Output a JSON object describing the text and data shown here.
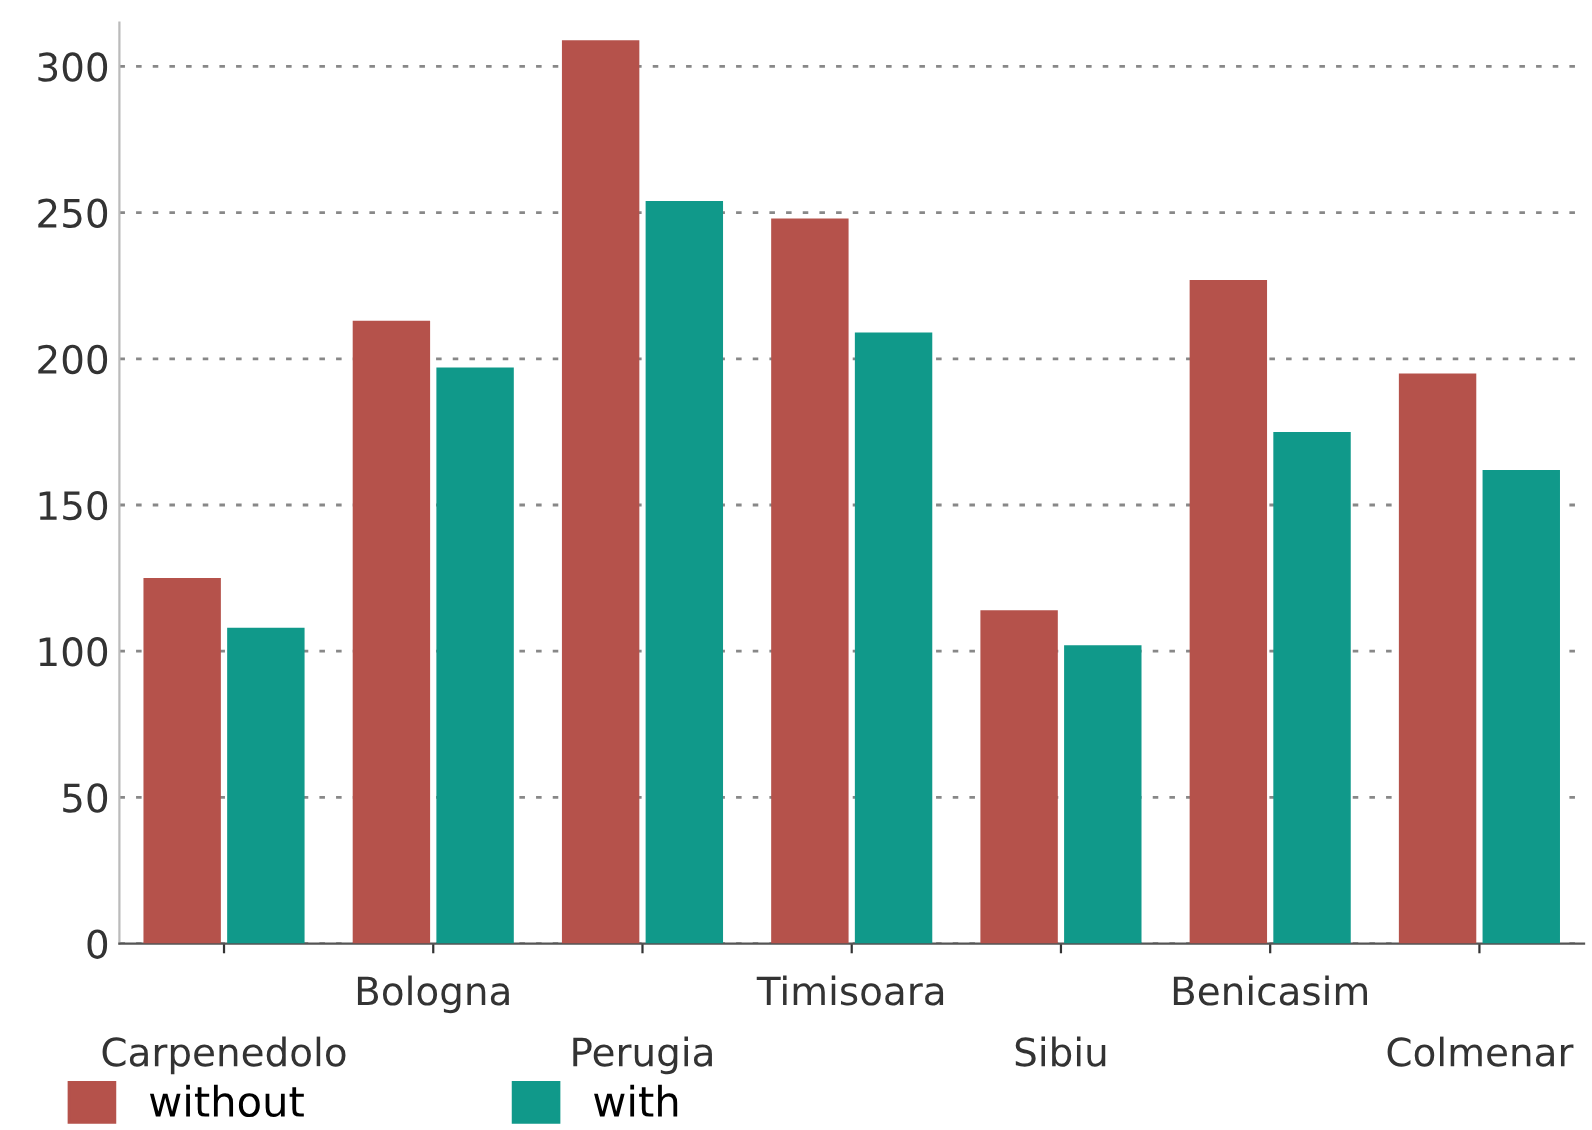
{
  "chart_data": {
    "type": "bar",
    "categories": [
      "Carpenedolo",
      "Bologna",
      "Perugia",
      "Timisoara",
      "Sibiu",
      "Benicasim",
      "Colmenar"
    ],
    "series": [
      {
        "name": "without",
        "color": "#b5524b",
        "values": [
          125,
          213,
          309,
          248,
          114,
          227,
          195
        ]
      },
      {
        "name": "with",
        "color": "#10998a",
        "values": [
          108,
          197,
          254,
          209,
          102,
          175,
          162
        ]
      }
    ],
    "ylim": [
      0,
      315
    ],
    "yticks": [
      0,
      50,
      100,
      150,
      200,
      250,
      300
    ],
    "grid": "y",
    "legend": "bottom left"
  }
}
